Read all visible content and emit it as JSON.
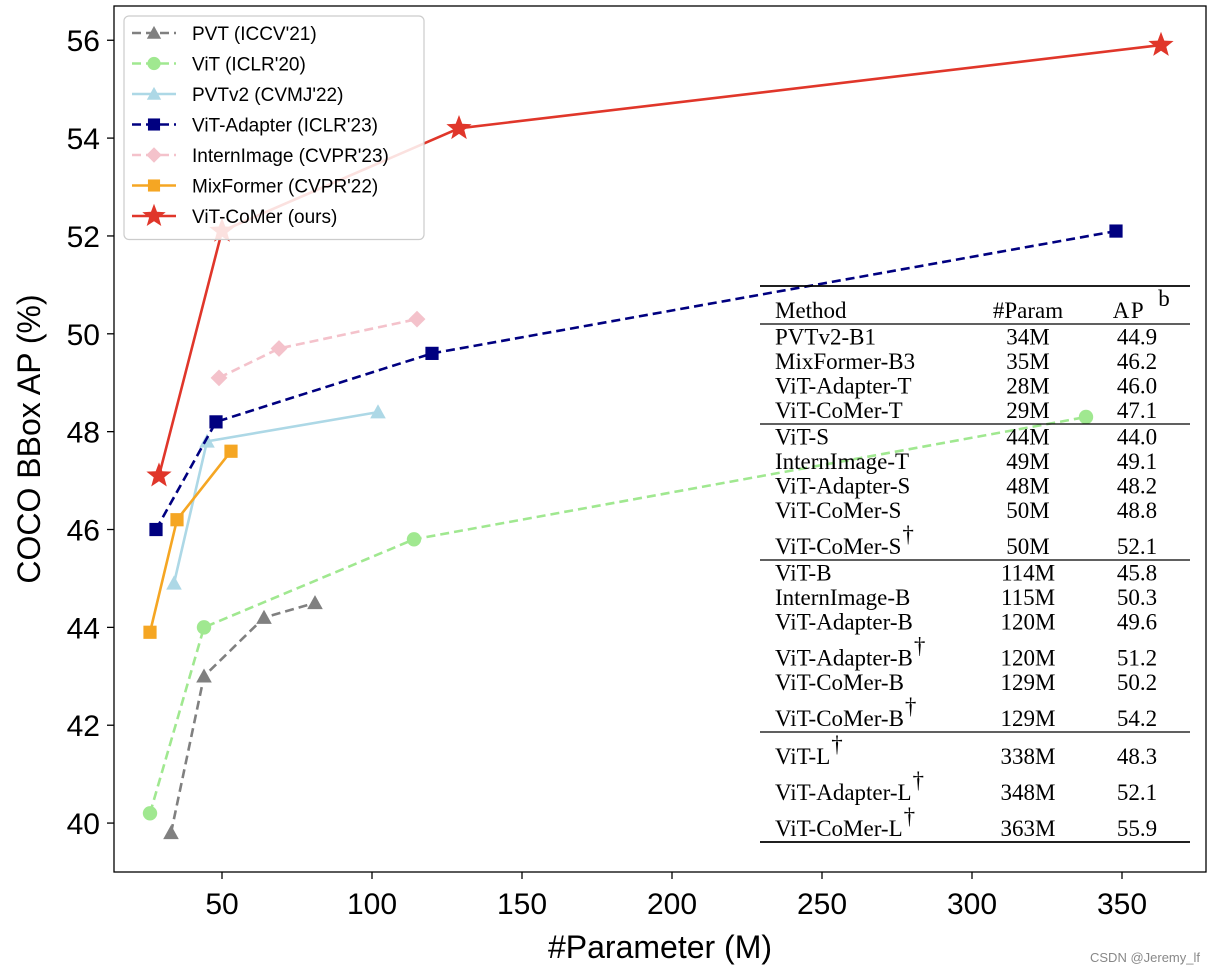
{
  "chart_data": {
    "type": "line",
    "title": "",
    "xlabel": "#Parameter (M)",
    "ylabel": "COCO BBox AP (%)",
    "xlim": [
      14,
      378
    ],
    "ylim": [
      39.0,
      56.7
    ],
    "xticks": [
      50,
      100,
      150,
      200,
      250,
      300,
      350
    ],
    "yticks": [
      40,
      42,
      44,
      46,
      48,
      50,
      52,
      54,
      56
    ],
    "legend_position": "top-left",
    "series": [
      {
        "name": "PVT (ICCV'21)",
        "color": "#808080",
        "dash": "dashed",
        "marker": "triangle",
        "x": [
          33,
          44,
          64,
          81
        ],
        "y": [
          39.8,
          43.0,
          44.2,
          44.5
        ]
      },
      {
        "name": "ViT (ICLR'20)",
        "color": "#a0e890",
        "dash": "dashed",
        "marker": "circle",
        "x": [
          26,
          44,
          114,
          338
        ],
        "y": [
          40.2,
          44.0,
          45.8,
          48.3
        ]
      },
      {
        "name": "PVTv2 (CVMJ'22)",
        "color": "#add8e6",
        "dash": "solid",
        "marker": "triangle",
        "x": [
          34,
          45,
          102
        ],
        "y": [
          44.9,
          47.8,
          48.4
        ]
      },
      {
        "name": "ViT-Adapter (ICLR'23)",
        "color": "#000080",
        "dash": "dashed",
        "marker": "square",
        "x": [
          28,
          48,
          120,
          348
        ],
        "y": [
          46.0,
          48.2,
          49.6,
          52.1
        ]
      },
      {
        "name": "InternImage (CVPR'23)",
        "color": "#f4c2cb",
        "dash": "dashed",
        "marker": "diamond",
        "x": [
          49,
          69,
          115
        ],
        "y": [
          49.1,
          49.7,
          50.3
        ]
      },
      {
        "name": "MixFormer (CVPR'22)",
        "color": "#f5a623",
        "dash": "solid",
        "marker": "square",
        "x": [
          26,
          35,
          53
        ],
        "y": [
          43.9,
          46.2,
          47.6
        ]
      },
      {
        "name": "ViT-CoMer (ours)",
        "color": "#e0362a",
        "dash": "solid",
        "marker": "star",
        "x": [
          29,
          50,
          129,
          363
        ],
        "y": [
          47.1,
          52.1,
          54.2,
          55.9
        ]
      }
    ]
  },
  "table": {
    "headers": [
      "Method",
      "#Param",
      "AP"
    ],
    "ap_superscript": "b",
    "dagger": "†",
    "groups": [
      [
        {
          "method": "PVTv2-B1",
          "param": "34M",
          "ap": "44.9",
          "dagger": false
        },
        {
          "method": "MixFormer-B3",
          "param": "35M",
          "ap": "46.2",
          "dagger": false
        },
        {
          "method": "ViT-Adapter-T",
          "param": "28M",
          "ap": "46.0",
          "dagger": false
        },
        {
          "method": "ViT-CoMer-T",
          "param": "29M",
          "ap": "47.1",
          "dagger": false
        }
      ],
      [
        {
          "method": "ViT-S",
          "param": "44M",
          "ap": "44.0",
          "dagger": false
        },
        {
          "method": "InternImage-T",
          "param": "49M",
          "ap": "49.1",
          "dagger": false
        },
        {
          "method": "ViT-Adapter-S",
          "param": "48M",
          "ap": "48.2",
          "dagger": false
        },
        {
          "method": "ViT-CoMer-S",
          "param": "50M",
          "ap": "48.8",
          "dagger": false
        },
        {
          "method": "ViT-CoMer-S",
          "param": "50M",
          "ap": "52.1",
          "dagger": true
        }
      ],
      [
        {
          "method": "ViT-B",
          "param": "114M",
          "ap": "45.8",
          "dagger": false
        },
        {
          "method": "InternImage-B",
          "param": "115M",
          "ap": "50.3",
          "dagger": false
        },
        {
          "method": "ViT-Adapter-B",
          "param": "120M",
          "ap": "49.6",
          "dagger": false
        },
        {
          "method": "ViT-Adapter-B",
          "param": "120M",
          "ap": "51.2",
          "dagger": true
        },
        {
          "method": "ViT-CoMer-B",
          "param": "129M",
          "ap": "50.2",
          "dagger": false
        },
        {
          "method": "ViT-CoMer-B",
          "param": "129M",
          "ap": "54.2",
          "dagger": true
        }
      ],
      [
        {
          "method": "ViT-L",
          "param": "338M",
          "ap": "48.3",
          "dagger": true
        },
        {
          "method": "ViT-Adapter-L",
          "param": "348M",
          "ap": "52.1",
          "dagger": true
        },
        {
          "method": "ViT-CoMer-L",
          "param": "363M",
          "ap": "55.9",
          "dagger": true
        }
      ]
    ]
  },
  "watermark": "CSDN @Jeremy_lf"
}
